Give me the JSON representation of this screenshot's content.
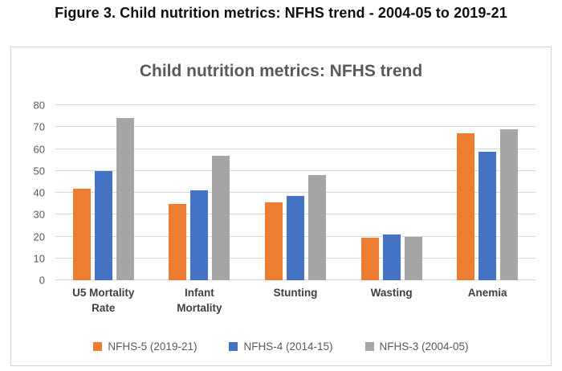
{
  "figure": {
    "caption": "Figure 3. Child nutrition metrics: NFHS trend - 2004-05 to 2019-21"
  },
  "chart": {
    "title": "Child nutrition metrics: NFHS trend"
  },
  "chart_data": {
    "type": "bar",
    "title": "Child nutrition metrics: NFHS trend",
    "categories": [
      "U5 Mortality Rate",
      "Infant Mortality",
      "Stunting",
      "Wasting",
      "Anemia"
    ],
    "series": [
      {
        "name": "NFHS-5 (2019-21)",
        "color": "#ED7D31",
        "values": [
          42,
          35,
          35.5,
          19.3,
          67
        ]
      },
      {
        "name": "NFHS-4  (2014-15)",
        "color": "#4472C4",
        "values": [
          50,
          41,
          38.4,
          21,
          58.6
        ]
      },
      {
        "name": "NFHS-3 (2004-05)",
        "color": "#A5A5A5",
        "values": [
          74,
          57,
          48,
          19.8,
          69
        ]
      }
    ],
    "xlabel": "",
    "ylabel": "",
    "ylim": [
      0,
      80
    ],
    "yticks": [
      0,
      10,
      20,
      30,
      40,
      50,
      60,
      70,
      80
    ],
    "grid": true,
    "legend_position": "bottom",
    "gridline_color": "#d9d9d9",
    "title_color": "#595959",
    "axis_text_color": "#595959"
  }
}
